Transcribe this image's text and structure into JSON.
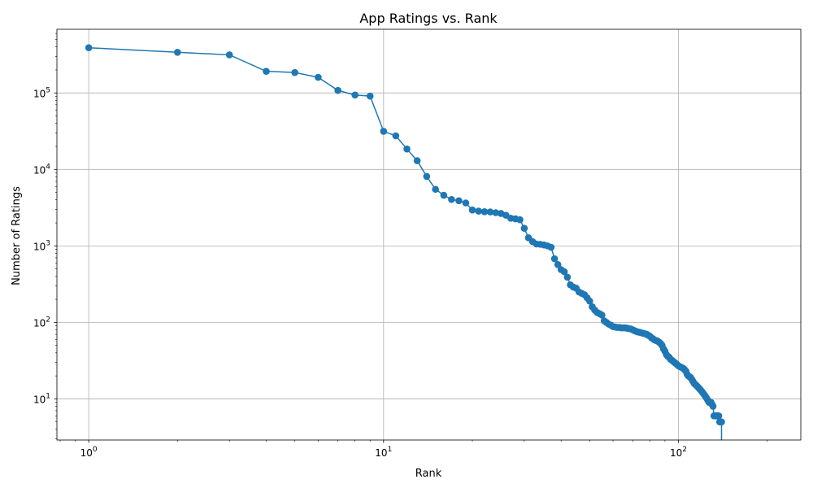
{
  "chart_data": {
    "type": "line",
    "title": "App Ratings vs. Rank",
    "xlabel": "Rank",
    "ylabel": "Number of Ratings",
    "xscale": "log",
    "yscale": "log",
    "xlim": [
      0.78,
      260
    ],
    "ylim": [
      2.9,
      680000
    ],
    "grid": true,
    "marker": "circle",
    "line_color": "#1f77b4",
    "x_ticks": [
      {
        "value": 1,
        "base": "10",
        "exp": "0"
      },
      {
        "value": 10,
        "base": "10",
        "exp": "1"
      },
      {
        "value": 100,
        "base": "10",
        "exp": "2"
      }
    ],
    "y_ticks": [
      {
        "value": 10,
        "base": "10",
        "exp": "1"
      },
      {
        "value": 100,
        "base": "10",
        "exp": "2"
      },
      {
        "value": 1000,
        "base": "10",
        "exp": "3"
      },
      {
        "value": 10000,
        "base": "10",
        "exp": "4"
      },
      {
        "value": 100000,
        "base": "10",
        "exp": "5"
      }
    ],
    "series": [
      {
        "values": [
          [
            1,
            390000
          ],
          [
            2,
            340000
          ],
          [
            3,
            315000
          ],
          [
            4,
            192000
          ],
          [
            5,
            185000
          ],
          [
            6,
            160000
          ],
          [
            7,
            108000
          ],
          [
            8,
            94000
          ],
          [
            9,
            91000
          ],
          [
            10,
            31500
          ],
          [
            11,
            27500
          ],
          [
            12,
            18500
          ],
          [
            13,
            13000
          ],
          [
            14,
            8100
          ],
          [
            15,
            5500
          ],
          [
            16,
            4600
          ],
          [
            17,
            4050
          ],
          [
            18,
            3900
          ],
          [
            19,
            3650
          ],
          [
            20,
            2950
          ],
          [
            21,
            2850
          ],
          [
            22,
            2800
          ],
          [
            23,
            2780
          ],
          [
            24,
            2720
          ],
          [
            25,
            2660
          ],
          [
            26,
            2520
          ],
          [
            27,
            2300
          ],
          [
            28,
            2260
          ],
          [
            29,
            2200
          ],
          [
            30,
            1700
          ],
          [
            31,
            1280
          ],
          [
            32,
            1140
          ],
          [
            33,
            1060
          ],
          [
            34,
            1050
          ],
          [
            35,
            1030
          ],
          [
            36,
            1000
          ],
          [
            37,
            960
          ],
          [
            38,
            680
          ],
          [
            39,
            570
          ],
          [
            40,
            490
          ],
          [
            41,
            460
          ],
          [
            42,
            390
          ],
          [
            43,
            310
          ],
          [
            44,
            290
          ],
          [
            45,
            280
          ],
          [
            46,
            250
          ],
          [
            47,
            240
          ],
          [
            48,
            230
          ],
          [
            49,
            210
          ],
          [
            50,
            190
          ],
          [
            51,
            160
          ],
          [
            52,
            145
          ],
          [
            53,
            135
          ],
          [
            54,
            130
          ],
          [
            55,
            125
          ],
          [
            56,
            105
          ],
          [
            57,
            100
          ],
          [
            58,
            95
          ],
          [
            59,
            92
          ],
          [
            60,
            88
          ],
          [
            61,
            87
          ],
          [
            62,
            86
          ],
          [
            63,
            86
          ],
          [
            64,
            85
          ],
          [
            65,
            85
          ],
          [
            66,
            85
          ],
          [
            67,
            84
          ],
          [
            68,
            83
          ],
          [
            69,
            82
          ],
          [
            70,
            80
          ],
          [
            71,
            78
          ],
          [
            72,
            76
          ],
          [
            73,
            75
          ],
          [
            74,
            74
          ],
          [
            75,
            73
          ],
          [
            76,
            72
          ],
          [
            77,
            71
          ],
          [
            78,
            70
          ],
          [
            79,
            68
          ],
          [
            80,
            66
          ],
          [
            81,
            63
          ],
          [
            82,
            61
          ],
          [
            83,
            59
          ],
          [
            84,
            58
          ],
          [
            85,
            57
          ],
          [
            86,
            55
          ],
          [
            87,
            53
          ],
          [
            88,
            50
          ],
          [
            89,
            45
          ],
          [
            90,
            42
          ],
          [
            91,
            38
          ],
          [
            92,
            36
          ],
          [
            93,
            35
          ],
          [
            94,
            33
          ],
          [
            95,
            32
          ],
          [
            96,
            31
          ],
          [
            97,
            30
          ],
          [
            98,
            29
          ],
          [
            99,
            28
          ],
          [
            100,
            27
          ],
          [
            101,
            26.5
          ],
          [
            102,
            26
          ],
          [
            103,
            25.5
          ],
          [
            104,
            25
          ],
          [
            105,
            24
          ],
          [
            106,
            23
          ],
          [
            107,
            21
          ],
          [
            108,
            20
          ],
          [
            109,
            19.5
          ],
          [
            110,
            19
          ],
          [
            111,
            18
          ],
          [
            112,
            17
          ],
          [
            113,
            16
          ],
          [
            114,
            15.5
          ],
          [
            115,
            15
          ],
          [
            116,
            14.5
          ],
          [
            117,
            14
          ],
          [
            118,
            13.5
          ],
          [
            119,
            13
          ],
          [
            120,
            12.5
          ],
          [
            121,
            12
          ],
          [
            122,
            11.5
          ],
          [
            123,
            11
          ],
          [
            124,
            10.5
          ],
          [
            125,
            10
          ],
          [
            126,
            9.5
          ],
          [
            127,
            9
          ],
          [
            128,
            9
          ],
          [
            129,
            9
          ],
          [
            130,
            8.5
          ],
          [
            131,
            8
          ],
          [
            132,
            6
          ],
          [
            133,
            6
          ],
          [
            134,
            6
          ],
          [
            135,
            6
          ],
          [
            136,
            6
          ],
          [
            137,
            6
          ],
          [
            138,
            5
          ],
          [
            139,
            5
          ],
          [
            140,
            5
          ]
        ],
        "trailing_drop": {
          "x": 140,
          "y_to": 2.9
        }
      }
    ]
  }
}
